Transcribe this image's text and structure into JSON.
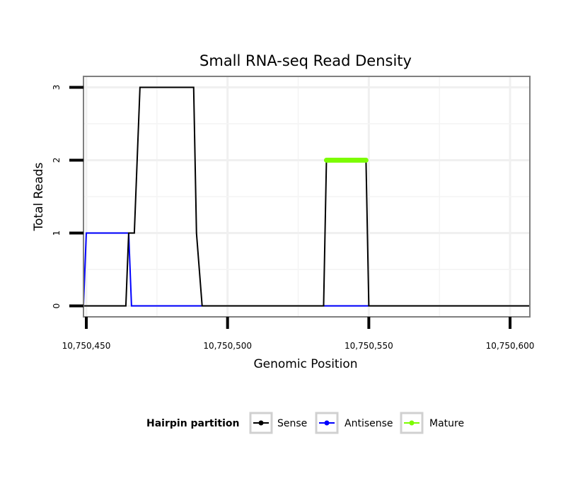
{
  "chart_data": {
    "type": "line",
    "title": "Small RNA-seq Read Density",
    "xlabel": "Genomic Position",
    "ylabel": "Total Reads",
    "xlim": [
      10750449,
      10750607
    ],
    "ylim": [
      -0.15,
      3.15
    ],
    "x_ticks": [
      10750450,
      10750500,
      10750550,
      10750600
    ],
    "x_tick_labels": [
      "10,750,450",
      "10,750,500",
      "10,750,550",
      "10,750,600"
    ],
    "y_ticks": [
      0,
      1,
      2,
      3
    ],
    "y_tick_labels": [
      "0",
      "1",
      "2",
      "3"
    ],
    "grid": true,
    "legend": {
      "title": "Hairpin partition",
      "position": "bottom",
      "entries": [
        "Sense",
        "Antisense",
        "Mature"
      ]
    },
    "series": [
      {
        "name": "Sense",
        "color": "#000000",
        "x": [
          10750448,
          10750464,
          10750465,
          10750467,
          10750469,
          10750488,
          10750489,
          10750491,
          10750534,
          10750535,
          10750549,
          10750550,
          10750607
        ],
        "y": [
          0,
          0,
          1,
          1,
          3,
          3,
          1,
          0,
          0,
          2,
          2,
          0,
          0
        ]
      },
      {
        "name": "Antisense",
        "color": "#0000ff",
        "x": [
          10750448,
          10750449,
          10750450,
          10750465,
          10750466,
          10750490,
          10750535,
          10750550
        ],
        "y": [
          0,
          0,
          1,
          1,
          0,
          0,
          0,
          0
        ]
      },
      {
        "name": "Mature",
        "color": "#7cfc00",
        "x": [
          10750535,
          10750549
        ],
        "y": [
          2,
          2
        ]
      }
    ]
  }
}
